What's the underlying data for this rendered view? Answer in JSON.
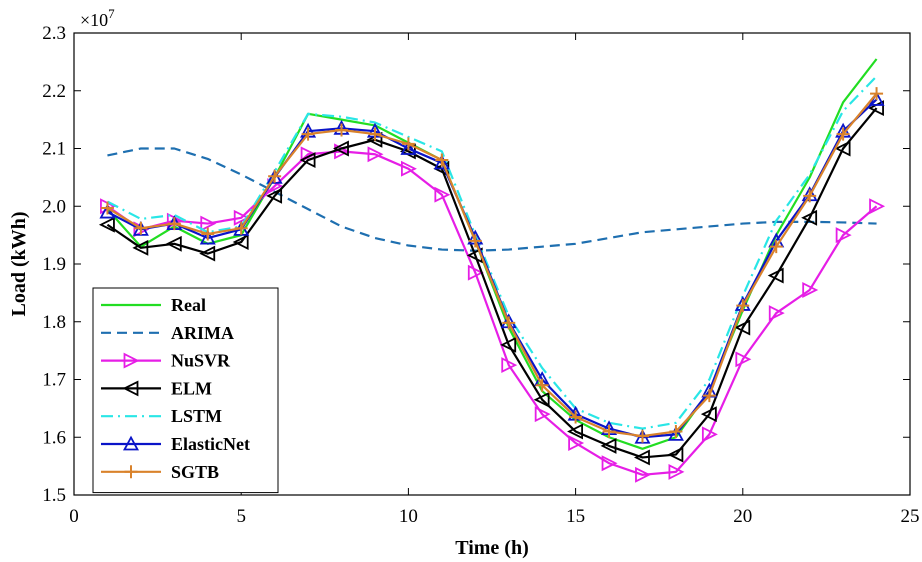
{
  "chart_data": {
    "type": "line",
    "xlabel": "Time (h)",
    "ylabel": "Load (kWh)",
    "scale_label": "×10",
    "scale_exponent": "7",
    "xlim": [
      0,
      25
    ],
    "ylim": [
      1.5,
      2.3
    ],
    "xticks": [
      0,
      5,
      10,
      15,
      20,
      25
    ],
    "yticks": [
      1.5,
      1.6,
      1.7,
      1.8,
      1.9,
      2.0,
      2.1,
      2.2,
      2.3
    ],
    "grid": false,
    "legend_position": "lower-left",
    "x": [
      1,
      2,
      3,
      4,
      5,
      6,
      7,
      8,
      9,
      10,
      11,
      12,
      13,
      14,
      15,
      16,
      17,
      18,
      19,
      20,
      21,
      22,
      23,
      24
    ],
    "series": [
      {
        "name": "Real",
        "color": "#22dd22",
        "dash": "solid",
        "marker": "none",
        "values": [
          1.995,
          1.93,
          1.965,
          1.935,
          1.95,
          2.05,
          2.16,
          2.15,
          2.14,
          2.11,
          2.08,
          1.94,
          1.79,
          1.68,
          1.63,
          1.6,
          1.58,
          1.6,
          1.68,
          1.82,
          1.95,
          2.05,
          2.18,
          2.255
        ]
      },
      {
        "name": "ARIMA",
        "color": "#1e6fb0",
        "dash": "dashed",
        "marker": "none",
        "values": [
          2.088,
          2.1,
          2.1,
          2.082,
          2.055,
          2.025,
          1.995,
          1.965,
          1.945,
          1.932,
          1.925,
          1.923,
          1.925,
          1.93,
          1.935,
          1.945,
          1.955,
          1.96,
          1.965,
          1.97,
          1.973,
          1.973,
          1.972,
          1.97
        ]
      },
      {
        "name": "NuSVR",
        "color": "#e61ee6",
        "dash": "solid",
        "marker": "triangle-right",
        "values": [
          2.0,
          1.96,
          1.975,
          1.97,
          1.98,
          2.035,
          2.09,
          2.095,
          2.09,
          2.065,
          2.02,
          1.885,
          1.725,
          1.64,
          1.59,
          1.555,
          1.535,
          1.54,
          1.605,
          1.735,
          1.815,
          1.855,
          1.95,
          2.0
        ]
      },
      {
        "name": "ELM",
        "color": "#000000",
        "dash": "solid",
        "marker": "triangle-left",
        "values": [
          1.968,
          1.928,
          1.935,
          1.918,
          1.938,
          2.018,
          2.08,
          2.1,
          2.115,
          2.095,
          2.065,
          1.915,
          1.76,
          1.665,
          1.61,
          1.585,
          1.565,
          1.57,
          1.64,
          1.79,
          1.88,
          1.98,
          2.1,
          2.17
        ]
      },
      {
        "name": "LSTM",
        "color": "#29e6e6",
        "dash": "dashdot",
        "marker": "none",
        "values": [
          2.008,
          1.978,
          1.985,
          1.955,
          1.965,
          2.06,
          2.16,
          2.155,
          2.145,
          2.12,
          2.095,
          1.95,
          1.81,
          1.72,
          1.65,
          1.625,
          1.615,
          1.625,
          1.7,
          1.845,
          1.975,
          2.055,
          2.165,
          2.225
        ]
      },
      {
        "name": "ElasticNet",
        "color": "#0a14c8",
        "dash": "solid",
        "marker": "triangle-up",
        "values": [
          1.99,
          1.96,
          1.97,
          1.945,
          1.96,
          2.05,
          2.13,
          2.135,
          2.13,
          2.1,
          2.075,
          1.945,
          1.8,
          1.7,
          1.64,
          1.615,
          1.6,
          1.605,
          1.68,
          1.83,
          1.94,
          2.02,
          2.13,
          2.185
        ]
      },
      {
        "name": "SGTB",
        "color": "#d9822b",
        "dash": "solid",
        "marker": "plus",
        "values": [
          1.997,
          1.962,
          1.97,
          1.952,
          1.962,
          2.052,
          2.125,
          2.132,
          2.125,
          2.108,
          2.08,
          1.94,
          1.798,
          1.69,
          1.635,
          1.61,
          1.602,
          1.61,
          1.672,
          1.828,
          1.93,
          2.018,
          2.125,
          2.195
        ]
      }
    ]
  }
}
